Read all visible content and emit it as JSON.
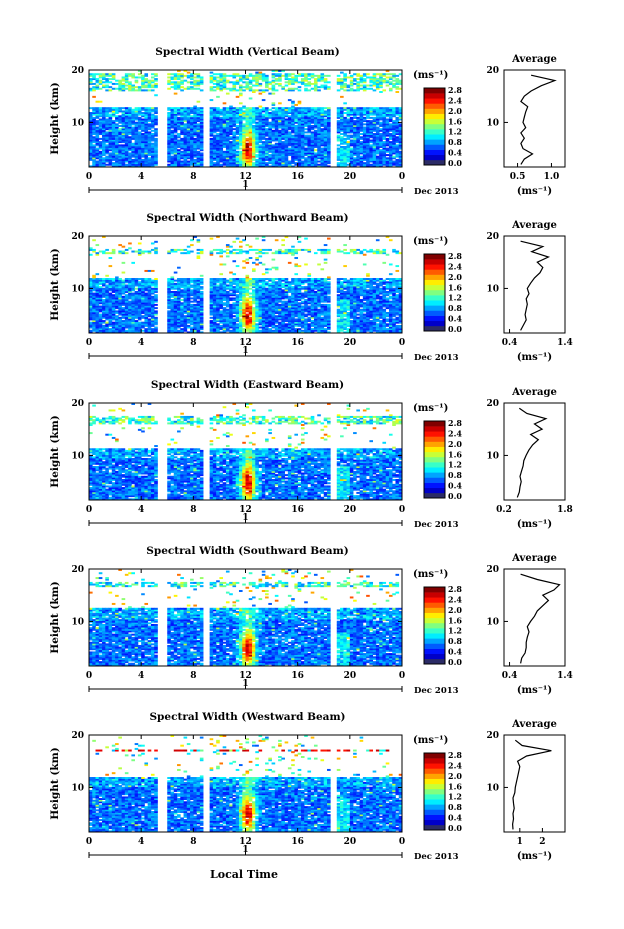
{
  "figure": {
    "time_axis_label": "Local Time",
    "date_label": "Dec 2013",
    "day_marker": "1",
    "colorbar_unit": "(ms⁻¹)",
    "avg_title": "Average",
    "avg_xlabel": "(ms⁻¹)",
    "ylabel": "Height (km)"
  },
  "chart_data": [
    {
      "type": "heatmap",
      "title": "Spectral Width (Vertical Beam)",
      "xlabel": "Local Time",
      "ylabel": "Height (km)",
      "xlim": [
        0,
        24
      ],
      "ylim": [
        1.5,
        20
      ],
      "xticks": [
        "0",
        "4",
        "8",
        "12",
        "16",
        "20",
        "0"
      ],
      "yticks": [
        "10",
        "20"
      ],
      "colorbar": {
        "label": "(ms⁻¹)",
        "range": [
          0.0,
          3.0
        ],
        "ticks": [
          "0.0",
          "0.4",
          "0.8",
          "1.2",
          "1.6",
          "2.0",
          "2.4",
          "2.8"
        ]
      },
      "data_gaps_hours": [
        [
          5.2,
          6.0
        ],
        [
          8.7,
          9.2
        ],
        [
          18.4,
          18.9
        ]
      ],
      "layer_top_km": 13,
      "upper_band_km": [
        16,
        19.5
      ],
      "peak_hour": 12.2,
      "average_profile": {
        "xlim": [
          0.3,
          1.2
        ],
        "xticks": [
          "0.5",
          "1.0"
        ],
        "yticks": [
          "10",
          "20"
        ],
        "height_km": [
          2,
          3,
          4,
          5,
          6,
          7,
          8,
          9,
          10,
          11,
          12,
          13,
          14,
          15,
          16,
          17,
          18,
          19
        ],
        "width_ms": [
          0.55,
          0.6,
          0.72,
          0.58,
          0.55,
          0.6,
          0.55,
          0.62,
          0.58,
          0.6,
          0.62,
          0.65,
          0.55,
          0.6,
          0.7,
          0.85,
          1.05,
          0.7
        ]
      }
    },
    {
      "type": "heatmap",
      "title": "Spectral Width (Northward Beam)",
      "xlabel": "Local Time",
      "ylabel": "Height (km)",
      "xlim": [
        0,
        24
      ],
      "ylim": [
        1.5,
        20
      ],
      "xticks": [
        "0",
        "4",
        "8",
        "12",
        "16",
        "20",
        "0"
      ],
      "yticks": [
        "10",
        "20"
      ],
      "colorbar": {
        "label": "(ms⁻¹)",
        "range": [
          0.0,
          3.0
        ],
        "ticks": [
          "0.0",
          "0.4",
          "0.8",
          "1.2",
          "1.6",
          "2.0",
          "2.4",
          "2.8"
        ]
      },
      "data_gaps_hours": [
        [
          5.2,
          6.0
        ],
        [
          8.7,
          9.2
        ],
        [
          18.4,
          18.9
        ]
      ],
      "layer_top_km": 12,
      "upper_band_km": [
        16.5,
        17.5
      ],
      "peak_hour": 12.2,
      "average_profile": {
        "xlim": [
          0.3,
          1.4
        ],
        "xticks": [
          "0.4",
          "1.4"
        ],
        "yticks": [
          "10",
          "20"
        ],
        "height_km": [
          2,
          3,
          4,
          5,
          6,
          7,
          8,
          9,
          10,
          11,
          12,
          13,
          14,
          15,
          16,
          17,
          18,
          19
        ],
        "width_ms": [
          0.6,
          0.65,
          0.7,
          0.68,
          0.7,
          0.72,
          0.7,
          0.75,
          0.72,
          0.78,
          0.85,
          0.95,
          1.0,
          0.9,
          1.1,
          0.8,
          1.0,
          0.6
        ]
      }
    },
    {
      "type": "heatmap",
      "title": "Spectral Width (Eastward Beam)",
      "xlabel": "Local Time",
      "ylabel": "Height (km)",
      "xlim": [
        0,
        24
      ],
      "ylim": [
        1.5,
        20
      ],
      "xticks": [
        "0",
        "4",
        "8",
        "12",
        "16",
        "20",
        "0"
      ],
      "yticks": [
        "10",
        "20"
      ],
      "colorbar": {
        "label": "(ms⁻¹)",
        "range": [
          0.0,
          3.0
        ],
        "ticks": [
          "0.0",
          "0.4",
          "0.8",
          "1.2",
          "1.6",
          "2.0",
          "2.4",
          "2.8"
        ]
      },
      "data_gaps_hours": [
        [
          5.2,
          6.0
        ],
        [
          8.7,
          9.2
        ],
        [
          18.4,
          18.9
        ]
      ],
      "layer_top_km": 11.5,
      "upper_band_km": [
        16,
        17.5
      ],
      "peak_hour": 12.2,
      "average_profile": {
        "xlim": [
          0.2,
          1.8
        ],
        "xticks": [
          "0.2",
          "1.8"
        ],
        "yticks": [
          "10",
          "20"
        ],
        "height_km": [
          2,
          3,
          4,
          5,
          6,
          7,
          8,
          9,
          10,
          11,
          12,
          13,
          14,
          15,
          16,
          17,
          18,
          19
        ],
        "width_ms": [
          0.55,
          0.6,
          0.62,
          0.65,
          0.62,
          0.66,
          0.7,
          0.72,
          0.78,
          0.85,
          0.95,
          1.1,
          0.9,
          1.2,
          1.0,
          1.3,
          0.8,
          0.6
        ]
      }
    },
    {
      "type": "heatmap",
      "title": "Spectral Width (Southward Beam)",
      "xlabel": "Local Time",
      "ylabel": "Height (km)",
      "xlim": [
        0,
        24
      ],
      "ylim": [
        1.5,
        20
      ],
      "xticks": [
        "0",
        "4",
        "8",
        "12",
        "16",
        "20",
        "0"
      ],
      "yticks": [
        "10",
        "20"
      ],
      "colorbar": {
        "label": "(ms⁻¹)",
        "range": [
          0.0,
          3.0
        ],
        "ticks": [
          "0.0",
          "0.4",
          "0.8",
          "1.2",
          "1.6",
          "2.0",
          "2.4",
          "2.8"
        ]
      },
      "data_gaps_hours": [
        [
          5.2,
          6.0
        ],
        [
          8.7,
          9.2
        ],
        [
          18.4,
          18.9
        ]
      ],
      "layer_top_km": 12.5,
      "upper_band_km": [
        16.5,
        17.5
      ],
      "peak_hour": 12.2,
      "average_profile": {
        "xlim": [
          0.3,
          1.4
        ],
        "xticks": [
          "0.4",
          "1.4"
        ],
        "yticks": [
          "10",
          "20"
        ],
        "height_km": [
          2,
          3,
          4,
          5,
          6,
          7,
          8,
          9,
          10,
          11,
          12,
          13,
          14,
          15,
          16,
          17,
          18,
          19
        ],
        "width_ms": [
          0.6,
          0.62,
          0.68,
          0.7,
          0.7,
          0.72,
          0.75,
          0.72,
          0.78,
          0.85,
          0.9,
          1.0,
          1.1,
          1.0,
          1.2,
          1.3,
          0.9,
          0.6
        ]
      }
    },
    {
      "type": "heatmap",
      "title": "Spectral Width (Westward Beam)",
      "xlabel": "Local Time",
      "ylabel": "Height (km)",
      "xlim": [
        0,
        24
      ],
      "ylim": [
        1.5,
        20
      ],
      "xticks": [
        "0",
        "4",
        "8",
        "12",
        "16",
        "20",
        "0"
      ],
      "yticks": [
        "10",
        "20"
      ],
      "colorbar": {
        "label": "(ms⁻¹)",
        "range": [
          0.0,
          3.0
        ],
        "ticks": [
          "0.0",
          "0.4",
          "0.8",
          "1.2",
          "1.6",
          "2.0",
          "2.4",
          "2.8"
        ]
      },
      "data_gaps_hours": [
        [
          5.2,
          6.0
        ],
        [
          8.7,
          9.2
        ],
        [
          18.4,
          18.9
        ]
      ],
      "layer_top_km": 12,
      "upper_band_km": [
        16.8,
        17.3
      ],
      "peak_hour": 12.2,
      "average_profile": {
        "xlim": [
          0.3,
          3.0
        ],
        "xticks": [
          "1",
          "2"
        ],
        "yticks": [
          "10",
          "20"
        ],
        "height_km": [
          2,
          3,
          4,
          5,
          6,
          7,
          8,
          9,
          10,
          11,
          12,
          13,
          14,
          15,
          16,
          17,
          18,
          19
        ],
        "width_ms": [
          0.7,
          0.68,
          0.72,
          0.7,
          0.75,
          0.72,
          0.7,
          0.78,
          0.8,
          0.85,
          0.9,
          0.95,
          1.0,
          0.9,
          1.3,
          2.4,
          1.1,
          0.8
        ]
      }
    }
  ]
}
